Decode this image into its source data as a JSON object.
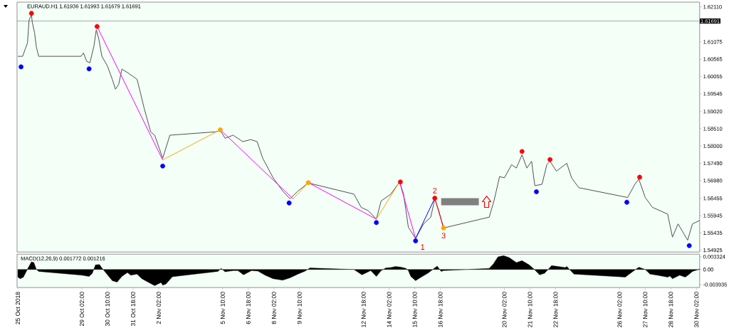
{
  "chart_data": [
    {
      "type": "line",
      "title": "EURAUD.H1  1.61936 1.61993 1.61679 1.61691",
      "xlim": [
        "2018-10-25T17:00",
        "2018-11-30T06:00"
      ],
      "ylim": [
        1.5487,
        1.6225
      ],
      "tick_labels": "y",
      "yticks": [
        {
          "value": 1.6211,
          "label": "1.62110"
        },
        1.61075,
        1.60565,
        1.60055,
        1.59545,
        {
          "value": 1.5902,
          "label": "1.59020"
        },
        {
          "value": 1.5851,
          "label": "1.58510"
        },
        {
          "value": 1.58,
          "label": "1.58000"
        },
        {
          "value": 1.5749,
          "label": "1.57490"
        },
        {
          "value": 1.5698,
          "label": "1.56980"
        },
        1.56455,
        1.55945,
        1.55435,
        1.54925
      ],
      "ref_lines": [
        {
          "axis": "y",
          "value": 1.61691,
          "label": "1.61691",
          "color": "#8c96a0"
        }
      ],
      "series": [
        {
          "type": "line",
          "color": "#505050",
          "x": [
            "2018-10-25T18:00",
            "2018-10-26T00:00",
            "2018-10-26T03:00",
            "2018-10-26T06:00",
            "2018-10-26T08:00",
            "2018-10-26T11:00",
            "2018-10-26T12:00",
            "2018-10-26T15:00",
            "2018-10-26T17:00",
            "2018-10-26T20:00",
            "2018-10-29T01:00",
            "2018-10-29T04:00",
            "2018-10-29T08:00",
            "2018-10-29T12:00",
            "2018-10-29T17:00",
            "2018-10-29T20:00",
            "2018-10-29T23:00",
            "2018-10-30T03:00",
            "2018-10-30T10:00",
            "2018-10-30T16:00",
            "2018-10-30T20:00",
            "2018-10-31T00:00",
            "2018-10-31T04:00",
            "2018-10-31T11:00",
            "2018-10-31T23:00",
            "2018-11-01T03:00",
            "2018-11-01T08:00",
            "2018-11-01T16:00",
            "2018-11-01T21:00",
            "2018-11-02T07:00",
            "2018-11-02T16:00",
            "2018-11-05T01:00",
            "2018-11-05T07:00",
            "2018-11-05T13:00",
            "2018-11-05T23:00",
            "2018-11-06T11:00",
            "2018-11-06T21:00",
            "2018-11-07T05:00",
            "2018-11-07T12:00",
            "2018-11-08T01:00",
            "2018-11-08T13:00",
            "2018-11-08T22:00",
            "2018-11-09T08:00",
            "2018-11-09T21:00",
            "2018-11-12T06:00",
            "2018-11-12T15:00",
            "2018-11-13T00:00",
            "2018-11-13T10:00",
            "2018-11-13T16:00",
            "2018-11-14T04:00",
            "2018-11-14T15:00",
            "2018-11-14T20:00",
            "2018-11-15T02:00",
            "2018-11-15T11:00",
            "2018-11-15T21:00",
            "2018-11-16T06:00",
            "2018-11-16T11:00",
            "2018-11-16T16:00",
            "2018-11-16T22:00",
            "2018-11-19T07:00",
            "2018-11-19T13:00",
            "2018-11-19T20:00",
            "2018-11-20T02:00",
            "2018-11-20T11:00",
            "2018-11-20T17:00",
            "2018-11-21T00:00",
            "2018-11-21T06:00",
            "2018-11-21T12:00",
            "2018-11-21T16:00",
            "2018-11-22T01:00",
            "2018-11-22T07:00",
            "2018-11-22T11:00",
            "2018-11-22T19:00",
            "2018-11-23T08:00",
            "2018-11-23T14:00",
            "2018-11-23T23:00",
            "2018-11-26T12:00",
            "2018-11-26T21:00",
            "2018-11-27T02:00",
            "2018-11-27T10:00",
            "2018-11-27T19:00",
            "2018-11-28T14:00",
            "2018-11-28T20:00",
            "2018-11-29T03:00",
            "2018-11-29T15:00",
            "2018-11-29T21:00",
            "2018-11-30T06:00"
          ],
          "values": [
            1.6065,
            1.6065,
            1.6085,
            1.6104,
            1.6172,
            1.6188,
            1.6166,
            1.6133,
            1.6094,
            1.6065,
            1.6065,
            1.6075,
            1.605,
            1.6046,
            1.6094,
            1.6143,
            1.6118,
            1.6065,
            1.6036,
            1.5997,
            1.5968,
            1.5982,
            1.6027,
            1.6017,
            1.5997,
            1.5959,
            1.591,
            1.5842,
            1.5832,
            1.5764,
            1.5832,
            1.5842,
            1.5846,
            1.5823,
            1.5832,
            1.5813,
            1.5819,
            1.5813,
            1.5764,
            1.5706,
            1.5667,
            1.5644,
            1.5667,
            1.5691,
            1.5658,
            1.5619,
            1.5609,
            1.5584,
            1.5638,
            1.5658,
            1.5694,
            1.5658,
            1.556,
            1.5527,
            1.557,
            1.559,
            1.5644,
            1.5609,
            1.5558,
            1.559,
            1.5638,
            1.571,
            1.5706,
            1.5745,
            1.5735,
            1.5774,
            1.5735,
            1.5755,
            1.5683,
            1.5687,
            1.5745,
            1.5755,
            1.5726,
            1.5749,
            1.5706,
            1.5677,
            1.5648,
            1.5687,
            1.5702,
            1.5648,
            1.5619,
            1.5599,
            1.5531,
            1.557,
            1.5522,
            1.557,
            1.558
          ]
        },
        {
          "type": "line",
          "color": "#ff00ff",
          "x": [
            "2018-10-29T21:00",
            "2018-11-02T07:00"
          ],
          "values": [
            1.6153,
            1.5759
          ]
        },
        {
          "type": "line",
          "color": "#ffa500",
          "x": [
            "2018-11-02T07:00",
            "2018-11-05T07:00"
          ],
          "values": [
            1.5759,
            1.5848
          ]
        },
        {
          "type": "line",
          "color": "#ff00ff",
          "x": [
            "2018-11-05T07:00",
            "2018-11-09T02:00"
          ],
          "values": [
            1.5848,
            1.5644
          ]
        },
        {
          "type": "line",
          "color": "#ffa500",
          "x": [
            "2018-11-09T02:00",
            "2018-11-09T21:00"
          ],
          "values": [
            1.5644,
            1.5692
          ]
        },
        {
          "type": "line",
          "color": "#ff00ff",
          "x": [
            "2018-11-09T21:00",
            "2018-11-13T10:00"
          ],
          "values": [
            1.5692,
            1.5584
          ]
        },
        {
          "type": "line",
          "color": "#ffa500",
          "x": [
            "2018-11-13T10:00",
            "2018-11-14T15:00"
          ],
          "values": [
            1.5584,
            1.5694
          ]
        },
        {
          "type": "line",
          "color": "#ff00ff",
          "x": [
            "2018-11-14T15:00",
            "2018-11-15T11:00"
          ],
          "values": [
            1.5694,
            1.5527
          ]
        },
        {
          "type": "line",
          "color": "#0000ff",
          "x": [
            "2018-11-15T11:00",
            "2018-11-16T11:00"
          ],
          "values": [
            1.5527,
            1.5646
          ]
        },
        {
          "type": "line",
          "color": "#ff0000",
          "x": [
            "2018-11-16T11:00",
            "2018-11-16T22:00"
          ],
          "values": [
            1.5646,
            1.5558
          ]
        },
        {
          "type": "scatter",
          "marker": "circle",
          "color": "#ff0000",
          "x": [
            "2018-10-26T11:00",
            "2018-10-29T21:00",
            "2018-11-14T16:00",
            "2018-11-16T11:00",
            "2018-11-21T00:00",
            "2018-11-22T11:00",
            "2018-11-27T03:00"
          ],
          "values": [
            1.6192,
            1.6153,
            1.5694,
            1.5646,
            1.5784,
            1.576,
            1.5708
          ]
        },
        {
          "type": "scatter",
          "marker": "circle",
          "color": "#0000ff",
          "x": [
            "2018-10-25T22:00",
            "2018-10-29T11:00",
            "2018-11-02T07:00",
            "2018-11-08T21:00",
            "2018-11-13T10:00",
            "2018-11-15T11:00",
            "2018-11-21T18:00",
            "2018-11-26T11:00",
            "2018-11-29T17:00"
          ],
          "values": [
            1.6034,
            1.6028,
            1.5741,
            1.5632,
            1.5574,
            1.552,
            1.5665,
            1.5634,
            1.5506
          ]
        },
        {
          "type": "scatter",
          "marker": "circle",
          "color": "#ffa500",
          "x": [
            "2018-11-05T07:00",
            "2018-11-09T21:00",
            "2018-11-16T22:00"
          ],
          "values": [
            1.5848,
            1.5692,
            1.5558
          ]
        }
      ],
      "annotations": [
        {
          "text": "1",
          "x": "2018-11-15T11:00",
          "y": 1.552
        },
        {
          "text": "2",
          "x": "2018-11-16T11:00",
          "y": 1.5646
        },
        {
          "text": "3",
          "x": "2018-11-16T22:00",
          "y": 1.5558
        }
      ]
    },
    {
      "type": "area",
      "title": "MACD(12,26,9) 0.001772 0.001216",
      "color": "#000000",
      "xlim": [
        "2018-10-25T17:00",
        "2018-11-30T06:00"
      ],
      "ylim": [
        -0.0047,
        0.004
      ],
      "yticks": [
        0.003324,
        {
          "value": 0,
          "label": "0.00"
        },
        -0.003935
      ],
      "xticks": [
        {
          "value": "2018-10-25T18:00",
          "label": "25 Oct 2018"
        },
        {
          "value": "2018-10-29T02:00",
          "label": "29 Oct 02:00"
        },
        {
          "value": "2018-10-30T10:00",
          "label": "30 Oct 10:00"
        },
        {
          "value": "2018-10-31T18:00",
          "label": "31 Oct 18:00"
        },
        {
          "value": "2018-11-02T02:00",
          "label": "2 Nov 02:00"
        },
        {
          "value": "2018-11-05T10:00",
          "label": "5 Nov 10:00"
        },
        {
          "value": "2018-11-06T18:00",
          "label": "6 Nov 18:00"
        },
        {
          "value": "2018-11-08T02:00",
          "label": "8 Nov 02:00"
        },
        {
          "value": "2018-11-09T10:00",
          "label": "9 Nov 10:00"
        },
        {
          "value": "2018-11-12T18:00",
          "label": "12 Nov 18:00"
        },
        {
          "value": "2018-11-14T02:00",
          "label": "14 Nov 02:00"
        },
        {
          "value": "2018-11-15T10:00",
          "label": "15 Nov 10:00"
        },
        {
          "value": "2018-11-16T18:00",
          "label": "16 Nov 18:00"
        },
        {
          "value": "2018-11-20T02:00",
          "label": "20 Nov 02:00"
        },
        {
          "value": "2018-11-21T10:00",
          "label": "21 Nov 10:00"
        },
        {
          "value": "2018-11-22T18:00",
          "label": "22 Nov 18:00"
        },
        {
          "value": "2018-11-26T02:00",
          "label": "26 Nov 02:00"
        },
        {
          "value": "2018-11-27T10:00",
          "label": "27 Nov 10:00"
        },
        {
          "value": "2018-11-28T18:00",
          "label": "28 Nov 18:00"
        },
        {
          "value": "2018-11-30T02:00",
          "label": "30 Nov 02:00"
        }
      ],
      "x": [
        "2018-10-25T18:00",
        "2018-10-25T21:00",
        "2018-10-26T01:00",
        "2018-10-26T06:00",
        "2018-10-26T11:00",
        "2018-10-26T14:00",
        "2018-10-26T17:00",
        "2018-10-26T20:00",
        "2018-10-29T02:00",
        "2018-10-29T11:00",
        "2018-10-29T15:00",
        "2018-10-29T19:00",
        "2018-10-30T00:00",
        "2018-10-30T03:00",
        "2018-10-30T10:00",
        "2018-10-30T16:00",
        "2018-10-30T22:00",
        "2018-10-31T04:00",
        "2018-10-31T11:00",
        "2018-10-31T15:00",
        "2018-10-31T23:00",
        "2018-11-01T05:00",
        "2018-11-01T11:00",
        "2018-11-01T21:00",
        "2018-11-02T05:00",
        "2018-11-02T07:00",
        "2018-11-02T11:00",
        "2018-11-02T19:00",
        "2018-11-05T04:00",
        "2018-11-05T08:00",
        "2018-11-05T13:00",
        "2018-11-05T23:00",
        "2018-11-06T05:00",
        "2018-11-06T12:00",
        "2018-11-06T22:00",
        "2018-11-07T06:00",
        "2018-11-07T15:00",
        "2018-11-08T01:00",
        "2018-11-08T13:00",
        "2018-11-08T22:00",
        "2018-11-09T08:00",
        "2018-11-09T17:00",
        "2018-11-09T23:00",
        "2018-11-12T06:00",
        "2018-11-12T16:00",
        "2018-11-13T03:00",
        "2018-11-13T10:00",
        "2018-11-13T16:00",
        "2018-11-13T22:00",
        "2018-11-14T04:00",
        "2018-11-14T10:00",
        "2018-11-14T17:00",
        "2018-11-14T23:00",
        "2018-11-15T02:00",
        "2018-11-15T05:00",
        "2018-11-15T11:00",
        "2018-11-15T18:00",
        "2018-11-16T03:00",
        "2018-11-16T09:00",
        "2018-11-16T14:00",
        "2018-11-16T19:00",
        "2018-11-16T22:00",
        "2018-11-19T07:00",
        "2018-11-19T12:00",
        "2018-11-19T18:00",
        "2018-11-20T01:00",
        "2018-11-20T08:00",
        "2018-11-20T17:00",
        "2018-11-21T00:00",
        "2018-11-21T09:00",
        "2018-11-21T15:00",
        "2018-11-21T22:00",
        "2018-11-22T04:00",
        "2018-11-22T09:00",
        "2018-11-22T13:00",
        "2018-11-22T21:00",
        "2018-11-23T06:00",
        "2018-11-23T08:00",
        "2018-11-23T11:00",
        "2018-11-23T17:00",
        "2018-11-26T02:00",
        "2018-11-26T09:00",
        "2018-11-26T18:00",
        "2018-11-27T02:00",
        "2018-11-27T10:00",
        "2018-11-27T16:00",
        "2018-11-28T01:00",
        "2018-11-28T14:00",
        "2018-11-28T17:00",
        "2018-11-28T20:00",
        "2018-11-29T05:00",
        "2018-11-29T12:00",
        "2018-11-29T16:00",
        "2018-11-29T21:00",
        "2018-11-30T06:00"
      ],
      "values": [
        -0.002,
        -0.0024,
        -0.002,
        0.0001,
        0.002,
        0.0018,
        0.0001,
        -0.0005,
        -0.0015,
        -0.0018,
        -0.001,
        0.0012,
        0.0013,
        0.0004,
        -0.0014,
        -0.0029,
        -0.0033,
        -0.0018,
        -0.0008,
        -0.0015,
        -0.0012,
        -0.0024,
        -0.0031,
        -0.0042,
        -0.0034,
        -0.0041,
        -0.0038,
        -0.0019,
        -0.0005,
        0.0003,
        -0.0006,
        -0.0003,
        -0.0003,
        -0.0014,
        -0.0003,
        -0.0004,
        -0.0015,
        -0.0024,
        -0.0028,
        -0.0022,
        -0.0012,
        -0.0004,
        0.0004,
        0,
        -0.0014,
        -0.0003,
        -0.0018,
        -0.0003,
        0.0004,
        0.0005,
        0.0008,
        0.0006,
        0.0003,
        -0.0003,
        -0.0018,
        -0.0029,
        -0.002,
        -0.0009,
        0.0001,
        0.0009,
        -0.0005,
        -0.0003,
        0.0003,
        0.0014,
        0.0033,
        0.0036,
        0.0031,
        0.0018,
        0.0023,
        0.0012,
        0.0001,
        -0.0014,
        -0.001,
        0.0001,
        0.001,
        0.0008,
        0.0005,
        0.0008,
        0.0001,
        -0.0012,
        -0.0019,
        -0.002,
        -0.0006,
        0.0006,
        0,
        -0.0012,
        -0.0015,
        -0.002,
        -0.0017,
        -0.0024,
        -0.0015,
        -0.002,
        -0.0014,
        -0.0005,
        0.0001
      ]
    }
  ]
}
